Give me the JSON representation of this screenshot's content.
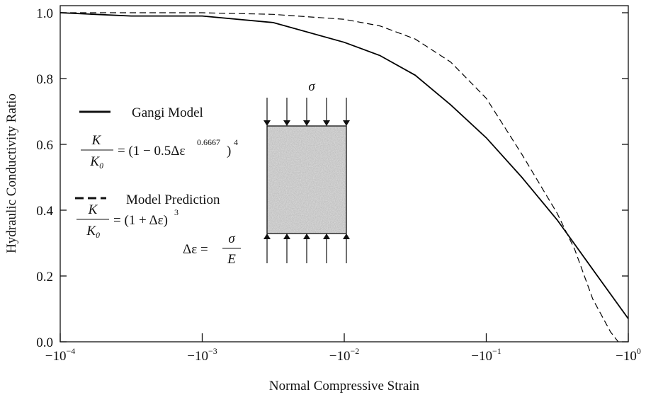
{
  "chart_data": {
    "type": "line",
    "x_label": "Normal Compressive Strain",
    "y_label": "Hydraulic Conductivity Ratio",
    "xscale": "log",
    "xlim": [
      -0.0001,
      -1
    ],
    "xticks": [
      {
        "value": -0.0001,
        "label": "−10^−4"
      },
      {
        "value": -0.001,
        "label": "−10^−3"
      },
      {
        "value": -0.01,
        "label": "−10^−2"
      },
      {
        "value": -0.1,
        "label": "−10^−1"
      },
      {
        "value": -1,
        "label": "−10^0"
      }
    ],
    "ylim": [
      0,
      1.0215
    ],
    "yticks": [
      {
        "value": 0,
        "label": "0.0"
      },
      0.2,
      0.4,
      0.6,
      0.8,
      {
        "value": 1,
        "label": "1.0"
      }
    ],
    "series": [
      {
        "name": "Gangi Model",
        "color": "#000000",
        "dash": "solid",
        "x": [
          -0.0001,
          -0.000316,
          -0.001,
          -0.00316,
          -0.01,
          -0.0178,
          -0.0316,
          -0.0562,
          -0.1,
          -0.178,
          -0.316,
          -0.562,
          -1
        ],
        "values": [
          1.0,
          0.99,
          0.99,
          0.97,
          0.91,
          0.87,
          0.81,
          0.72,
          0.62,
          0.5,
          0.37,
          0.22,
          0.07
        ]
      },
      {
        "name": "Model Prediction",
        "color": "#000000",
        "dash": "dashed",
        "x": [
          -0.0001,
          -0.001,
          -0.00316,
          -0.01,
          -0.0178,
          -0.0316,
          -0.0562,
          -0.1,
          -0.178,
          -0.316,
          -0.42,
          -0.562,
          -0.75,
          -0.85
        ],
        "values": [
          1.0,
          1.0,
          0.995,
          0.98,
          0.96,
          0.92,
          0.85,
          0.74,
          0.57,
          0.39,
          0.28,
          0.13,
          0.03,
          0.0
        ]
      }
    ],
    "annotations": {
      "eq1": {
        "num": "K",
        "den": "K₀",
        "rhs": "= (1 − 0.5Δε",
        "exp": "0.6667",
        "close": ")",
        "power": "4"
      },
      "eq2": {
        "num": "K",
        "den": "K₀",
        "rhs": "= (1 + Δε)",
        "power": "3"
      },
      "eq3": {
        "lhs": "Δε =",
        "num": "σ",
        "den": "E"
      },
      "stress": "σ"
    }
  }
}
